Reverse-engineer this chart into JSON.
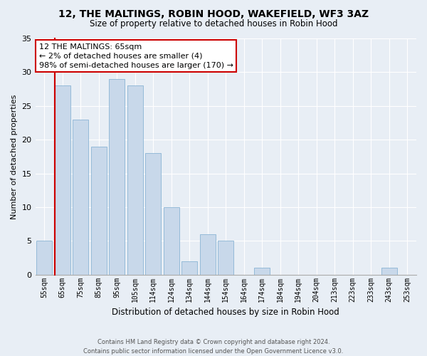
{
  "title": "12, THE MALTINGS, ROBIN HOOD, WAKEFIELD, WF3 3AZ",
  "subtitle": "Size of property relative to detached houses in Robin Hood",
  "xlabel": "Distribution of detached houses by size in Robin Hood",
  "ylabel": "Number of detached properties",
  "bar_color": "#c8d8ea",
  "bar_edge_color": "#7aaace",
  "highlight_color": "#cc0000",
  "categories": [
    "55sqm",
    "65sqm",
    "75sqm",
    "85sqm",
    "95sqm",
    "105sqm",
    "114sqm",
    "124sqm",
    "134sqm",
    "144sqm",
    "154sqm",
    "164sqm",
    "174sqm",
    "184sqm",
    "194sqm",
    "204sqm",
    "213sqm",
    "223sqm",
    "233sqm",
    "243sqm",
    "253sqm"
  ],
  "values": [
    5,
    28,
    23,
    19,
    29,
    28,
    18,
    10,
    2,
    6,
    5,
    0,
    1,
    0,
    0,
    0,
    0,
    0,
    0,
    1,
    0
  ],
  "highlight_index": 1,
  "ylim": [
    0,
    35
  ],
  "yticks": [
    0,
    5,
    10,
    15,
    20,
    25,
    30,
    35
  ],
  "annotation_text": "12 THE MALTINGS: 65sqm\n← 2% of detached houses are smaller (4)\n98% of semi-detached houses are larger (170) →",
  "footer_line1": "Contains HM Land Registry data © Crown copyright and database right 2024.",
  "footer_line2": "Contains public sector information licensed under the Open Government Licence v3.0.",
  "background_color": "#e8eef5",
  "grid_color": "#ffffff"
}
